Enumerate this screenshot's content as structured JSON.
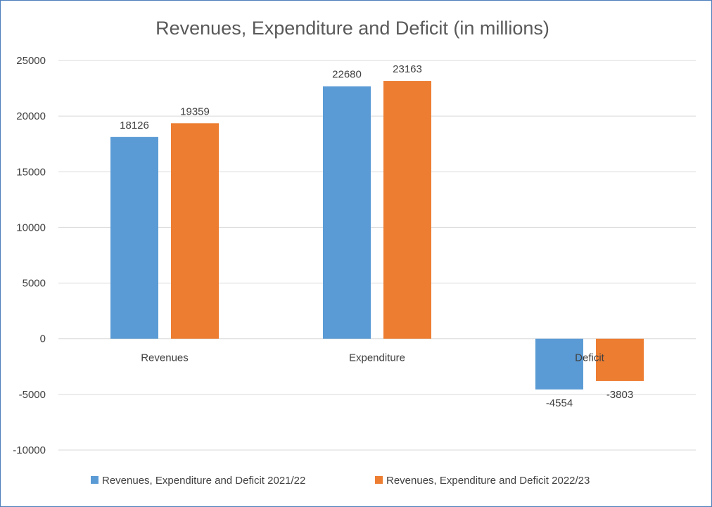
{
  "chart_data": {
    "type": "bar",
    "title": "Revenues, Expenditure and Deficit (in millions)",
    "categories": [
      "Revenues",
      "Expenditure",
      "Deficit"
    ],
    "series": [
      {
        "name": "Revenues, Expenditure and Deficit 2021/22",
        "values": [
          18126,
          22680,
          -4554
        ],
        "color": "#5b9bd5"
      },
      {
        "name": "Revenues, Expenditure and Deficit 2022/23",
        "values": [
          19359,
          23163,
          -3803
        ],
        "color": "#ed7d31"
      }
    ],
    "ylim": [
      -10000,
      25000
    ],
    "yticks": [
      "25000",
      "20000",
      "15000",
      "10000",
      "5000",
      "0",
      "-5000",
      "-10000"
    ],
    "ytick_values": [
      25000,
      20000,
      15000,
      10000,
      5000,
      0,
      -5000,
      -10000
    ],
    "data_labels": [
      [
        "18126",
        "22680",
        "-4554"
      ],
      [
        "19359",
        "23163",
        "-3803"
      ]
    ],
    "grid": true,
    "legend_position": "bottom",
    "gridline_color": "#d9d9d9",
    "frame_color": "#4a7ebb"
  }
}
